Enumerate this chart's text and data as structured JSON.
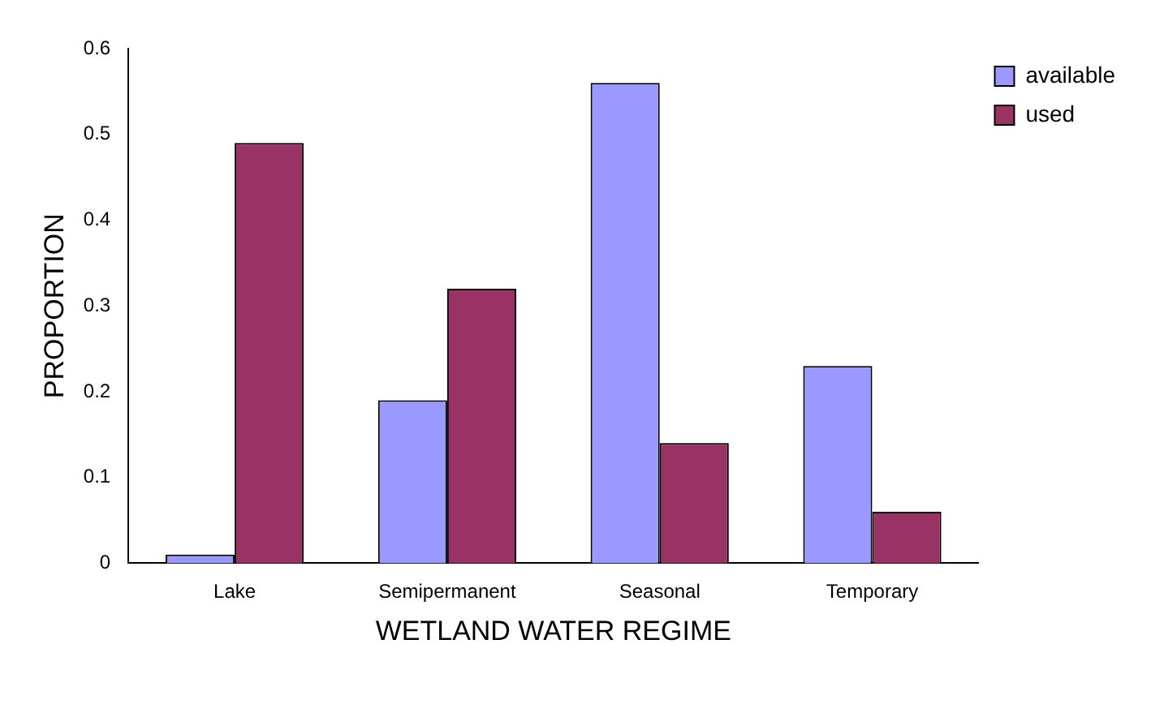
{
  "chart_data": {
    "type": "bar",
    "xlabel": "WETLAND WATER REGIME",
    "ylabel": "PROPORTION",
    "categories": [
      "Lake",
      "Semipermanent",
      "Seasonal",
      "Temporary"
    ],
    "series": [
      {
        "name": "available",
        "color": "#9999ff",
        "values": [
          0.01,
          0.19,
          0.56,
          0.23
        ]
      },
      {
        "name": "used",
        "color": "#993366",
        "values": [
          0.49,
          0.32,
          0.14,
          0.06
        ]
      }
    ],
    "ylim": [
      0,
      0.6
    ],
    "yticks": [
      0,
      0.1,
      0.2,
      0.3,
      0.4,
      0.5,
      0.6
    ],
    "grid": false,
    "legend": "top right"
  }
}
